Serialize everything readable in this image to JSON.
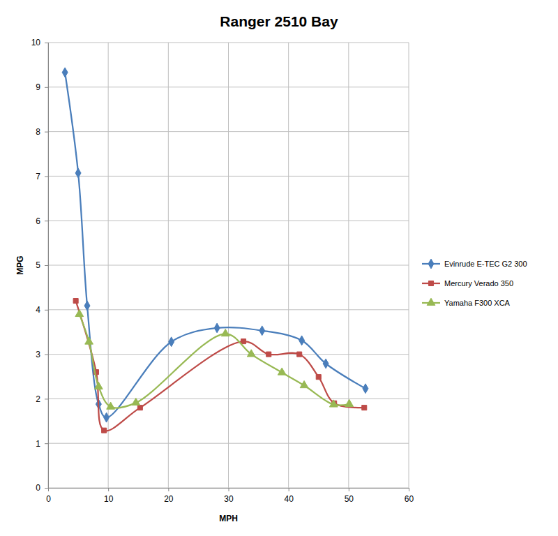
{
  "chart_data": {
    "type": "line",
    "title": "Ranger 2510 Bay",
    "x_label": "MPH",
    "y_label": "MPG",
    "xlim": [
      0,
      60
    ],
    "xticks": [
      0,
      10,
      20,
      30,
      40,
      50,
      60
    ],
    "ylim": [
      0,
      10
    ],
    "yticks": [
      0,
      1,
      2,
      3,
      4,
      5,
      6,
      7,
      8,
      9,
      10
    ],
    "grid": true,
    "legend": "right",
    "series": [
      {
        "name": "Evinrude E-TEC G2 300",
        "color": "#4a7ebb",
        "marker": "diamond",
        "line_style": "smooth",
        "x": [
          2.8,
          5.0,
          6.5,
          8.4,
          9.7,
          20.5,
          28.1,
          35.6,
          42.2,
          46.2,
          52.8
        ],
        "values": [
          9.33,
          7.07,
          4.09,
          1.88,
          1.58,
          3.28,
          3.59,
          3.53,
          3.31,
          2.79,
          2.23
        ]
      },
      {
        "name": "Mercury Verado 350",
        "color": "#be4b48",
        "marker": "square",
        "line_style": "smooth",
        "x": [
          4.6,
          8.0,
          9.3,
          15.3,
          32.5,
          36.7,
          41.8,
          45.0,
          47.6,
          52.6
        ],
        "values": [
          4.2,
          2.6,
          1.29,
          1.8,
          3.29,
          3.0,
          3.0,
          2.49,
          1.9,
          1.8
        ]
      },
      {
        "name": "Yamaha F300 XCA",
        "color": "#98b954",
        "marker": "triangle",
        "line_style": "smooth",
        "x": [
          5.2,
          6.8,
          8.4,
          10.4,
          14.6,
          29.5,
          33.8,
          38.9,
          42.6,
          47.5,
          50.1
        ],
        "values": [
          3.9,
          3.28,
          2.27,
          1.82,
          1.91,
          3.46,
          3.0,
          2.59,
          2.3,
          1.87,
          1.88
        ]
      }
    ]
  }
}
